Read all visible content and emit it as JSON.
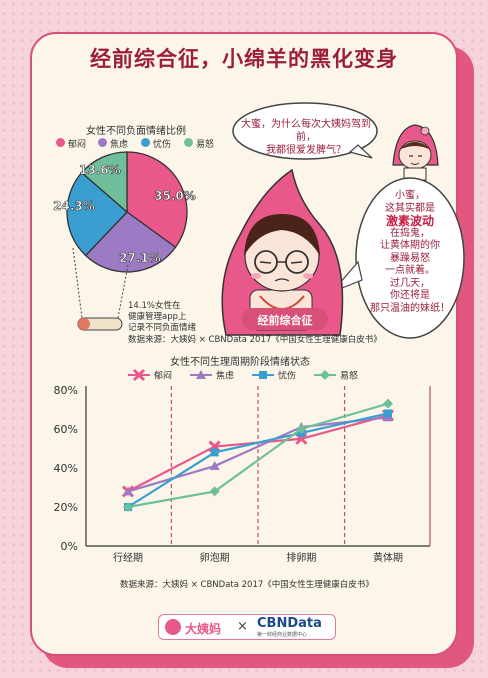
{
  "title": "经前综合征，小绵羊的黑化变身",
  "pie": {
    "title": "女性不同负面情绪比例",
    "note_lines": [
      "14.1%女性在",
      "健康管理app上",
      "记录不同负面情绪"
    ],
    "source": "数据来源：大姨妈 × CBNData 2017《中国女性生理健康白皮书》"
  },
  "bubble_left": {
    "lines": [
      "大蜜，为什么每次大姨妈驾到前，",
      "我都很爱发脾气？"
    ]
  },
  "bubble_right": {
    "line1": "小蜜，",
    "line2": "这其实都是",
    "emphasis": "激素波动",
    "line3": "在捣鬼，",
    "line4": "让黄体期的你",
    "line5": "暴躁易怒",
    "line6": "一点就着。",
    "line7": "过几天，",
    "line8": "你还将是",
    "line9": "那只温油的妹纸！"
  },
  "character_label": "经前综合征",
  "line_chart": {
    "title": "女性不同生理周期阶段情绪状态",
    "source": "数据来源：大姨妈 × CBNData 2017《中国女性生理健康白皮书》"
  },
  "footer": {
    "brand_left": "大姨妈",
    "times": "×",
    "brand_right": "CBNData",
    "brand_right_sub": "第一财经商业数据中心"
  },
  "colors": {
    "pink": "#e8588a",
    "purple": "#9d7ac4",
    "blue": "#3a9fd0",
    "green": "#6fbf9a",
    "title": "#9b1f3d",
    "accent": "#d84f77"
  },
  "chart_data": [
    {
      "type": "pie",
      "title": "女性不同负面情绪比例",
      "categories": [
        "郁闷",
        "焦虑",
        "忧伤",
        "易怒"
      ],
      "values": [
        35.0,
        27.1,
        24.3,
        13.6
      ],
      "labels": [
        "35.0%",
        "27.1%",
        "24.3%",
        "13.6%"
      ],
      "legend": "top"
    },
    {
      "type": "line",
      "title": "女性不同生理周期阶段情绪状态",
      "categories": [
        "行经期",
        "卵泡期",
        "排卵期",
        "黄体期"
      ],
      "yticks": [
        "0%",
        "20%",
        "40%",
        "60%",
        "80%"
      ],
      "ylim": [
        0,
        80
      ],
      "legend": "top",
      "series": [
        {
          "name": "郁闷",
          "values": [
            28,
            51,
            55,
            67
          ]
        },
        {
          "name": "焦虑",
          "values": [
            28,
            41,
            61,
            66
          ]
        },
        {
          "name": "忧伤",
          "values": [
            20,
            48,
            58,
            68
          ]
        },
        {
          "name": "易怒",
          "values": [
            20,
            28,
            60,
            73
          ]
        }
      ]
    }
  ]
}
